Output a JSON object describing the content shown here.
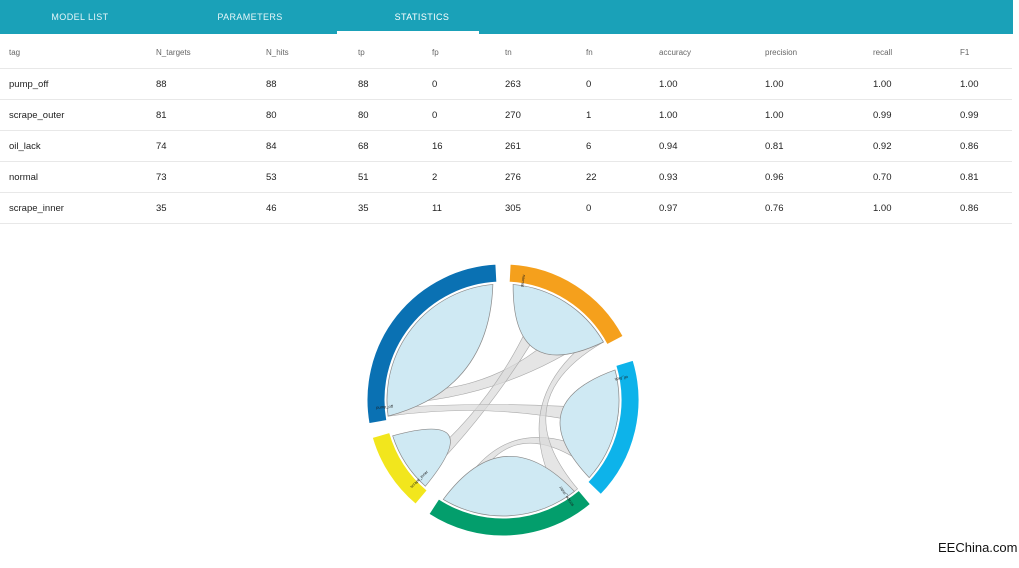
{
  "tabs": [
    {
      "label": "MODEL LIST",
      "active": false
    },
    {
      "label": "PARAMETERS",
      "active": false
    },
    {
      "label": "STATISTICS",
      "active": true
    }
  ],
  "table": {
    "columns": [
      "tag",
      "N_targets",
      "N_hits",
      "tp",
      "fp",
      "tn",
      "fn",
      "accuracy",
      "precision",
      "recall",
      "F1"
    ],
    "rows": [
      [
        "pump_off",
        "88",
        "88",
        "88",
        "0",
        "263",
        "0",
        "1.00",
        "1.00",
        "1.00",
        "1.00"
      ],
      [
        "scrape_outer",
        "81",
        "80",
        "80",
        "0",
        "270",
        "1",
        "1.00",
        "1.00",
        "0.99",
        "0.99"
      ],
      [
        "oil_lack",
        "74",
        "84",
        "68",
        "16",
        "261",
        "6",
        "0.94",
        "0.81",
        "0.92",
        "0.86"
      ],
      [
        "normal",
        "73",
        "53",
        "51",
        "2",
        "276",
        "22",
        "0.93",
        "0.96",
        "0.70",
        "0.81"
      ],
      [
        "scrape_inner",
        "35",
        "46",
        "35",
        "11",
        "305",
        "0",
        "0.97",
        "0.76",
        "1.00",
        "0.86"
      ]
    ]
  },
  "chord": {
    "segments": [
      {
        "label": "normal",
        "color": "#f5a01c"
      },
      {
        "label": "oil_lack",
        "color": "#0db3ea"
      },
      {
        "label": "scrape_outer",
        "color": "#039e6c"
      },
      {
        "label": "scrape_inner",
        "color": "#f2e61d"
      },
      {
        "label": "pump_off",
        "color": "#0a71b3"
      }
    ],
    "self_chord_color": "#cfe9f3",
    "cross_chord_color": "#dadada"
  },
  "watermark": "EEChina.com"
}
